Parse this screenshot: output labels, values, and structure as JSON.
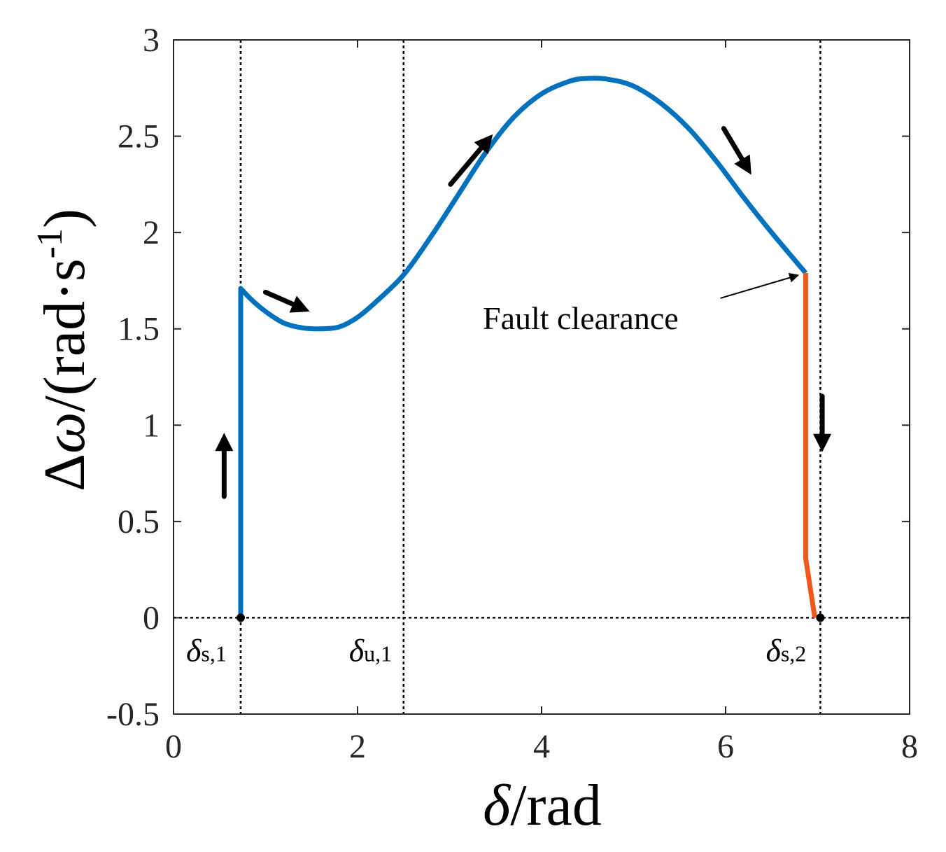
{
  "chart_data": {
    "type": "line",
    "title": "",
    "xlabel": "δ/rad",
    "ylabel": "Δω/(rad·s-1)",
    "ylabel_parts": {
      "prefix": "Δ",
      "omega": "ω",
      "body": "/(rad·s",
      "sup": "-1",
      "suffix": ")"
    },
    "xlabel_parts": {
      "delta": "δ",
      "body": "/rad"
    },
    "xlim": [
      0,
      8
    ],
    "ylim": [
      -0.5,
      3
    ],
    "xticks": [
      0,
      2,
      4,
      6,
      8
    ],
    "xtick_labels": [
      "0",
      "2",
      "4",
      "6",
      "8"
    ],
    "yticks": [
      -0.5,
      0,
      0.5,
      1,
      1.5,
      2,
      2.5,
      3
    ],
    "ytick_labels": [
      "-0.5",
      "0",
      "0.5",
      "1",
      "1.5",
      "2",
      "2.5",
      "3"
    ],
    "grid": false,
    "colors": {
      "fault_on": "#0072BD",
      "post_fault": "#F0581C",
      "axes": "#262626",
      "arrow": "#000000"
    },
    "series": [
      {
        "x": [
          0.73,
          0.73,
          0.73,
          0.85,
          1.0,
          1.2,
          1.4,
          1.59,
          1.8,
          2.0,
          2.2,
          2.5,
          2.8,
          3.1,
          3.4,
          3.7,
          4.0,
          4.3,
          4.5,
          4.73,
          5.0,
          5.3,
          5.6,
          5.9,
          6.2,
          6.5,
          6.87
        ],
        "y": [
          0.0,
          1.0,
          1.71,
          1.65,
          1.59,
          1.53,
          1.505,
          1.5,
          1.51,
          1.56,
          1.64,
          1.78,
          1.98,
          2.2,
          2.42,
          2.6,
          2.72,
          2.785,
          2.8,
          2.795,
          2.76,
          2.67,
          2.54,
          2.37,
          2.18,
          2.0,
          1.79
        ]
      },
      {
        "x": [
          6.87,
          6.87,
          6.87,
          6.97
        ],
        "y": [
          1.79,
          1.0,
          0.31,
          0.0
        ]
      }
    ],
    "reference_lines": {
      "vertical": [
        {
          "x": 0.73,
          "label": "δs,1",
          "label_main": "δ",
          "label_sub": "s,1"
        },
        {
          "x": 2.5,
          "label": "δu,1",
          "label_main": "δ",
          "label_sub": "u,1"
        },
        {
          "x": 7.03,
          "label": "δs,2",
          "label_main": "δ",
          "label_sub": "s,2"
        }
      ],
      "horizontal": [
        {
          "y": 0
        }
      ]
    },
    "markers": [
      {
        "x": 0.73,
        "y": 0
      },
      {
        "x": 7.03,
        "y": 0
      }
    ],
    "direction_arrows": [
      {
        "x1": 0.55,
        "y1": 0.63,
        "x2": 0.55,
        "y2": 0.96
      },
      {
        "x1": 1.0,
        "y1": 1.69,
        "x2": 1.48,
        "y2": 1.59
      },
      {
        "x1": 3.01,
        "y1": 2.25,
        "x2": 3.47,
        "y2": 2.51
      },
      {
        "x1": 5.98,
        "y1": 2.54,
        "x2": 6.28,
        "y2": 2.3
      },
      {
        "x1": 7.05,
        "y1": 1.15,
        "x2": 7.05,
        "y2": 0.86
      }
    ],
    "annotations": [
      {
        "text": "Fault clearance",
        "x": 4.75,
        "y": 1.55,
        "arrow_from": [
          5.95,
          1.66
        ],
        "arrow_to": [
          6.8,
          1.78
        ]
      }
    ]
  }
}
